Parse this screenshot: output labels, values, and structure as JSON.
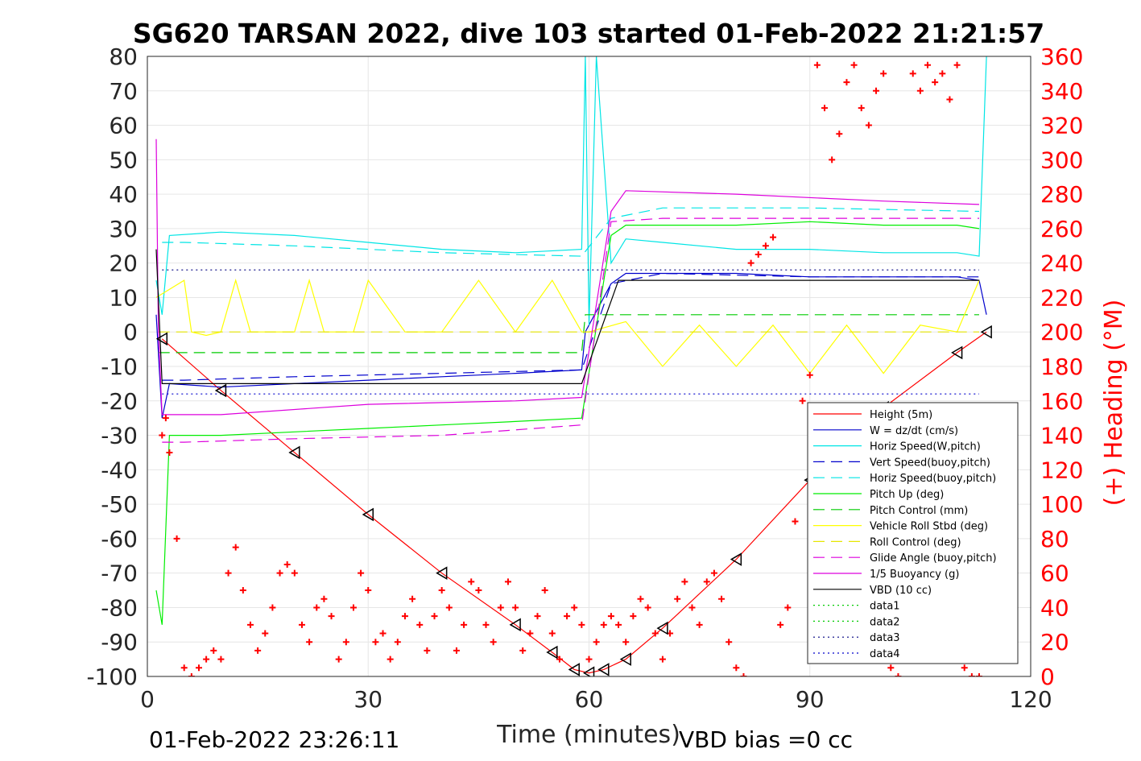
{
  "title": "SG620 TARSAN 2022, dive 103 started 01-Feb-2022 21:21:57",
  "footer_left": "01-Feb-2022 23:26:11",
  "footer_right": "VBD bias =0 cc",
  "colors": {
    "accent_right": "#ff0000"
  },
  "chart_data": {
    "type": "line",
    "xlabel": "Time (minutes)",
    "ylabel": "",
    "ylabel_right": "(+) Heading (°M)",
    "xlim": [
      0,
      120
    ],
    "ylim": [
      -100,
      80
    ],
    "ylim_right": [
      0,
      360
    ],
    "xticks": [
      0,
      30,
      60,
      90,
      120
    ],
    "yticks": [
      80,
      70,
      60,
      50,
      40,
      30,
      20,
      10,
      0,
      -10,
      -20,
      -30,
      -40,
      -50,
      -60,
      -70,
      -80,
      -90,
      -100
    ],
    "yticks_right": [
      360,
      340,
      320,
      300,
      280,
      260,
      240,
      220,
      200,
      180,
      160,
      140,
      120,
      100,
      80,
      60,
      40,
      20,
      0
    ],
    "grid": true,
    "legend_position": "lower-right",
    "series": [
      {
        "name": "Height (5m)",
        "color": "#ff0000",
        "style": "solid",
        "x": [
          2,
          10,
          20,
          30,
          40,
          50,
          55,
          58,
          60,
          62,
          65,
          70,
          80,
          90,
          100,
          110,
          114
        ],
        "y": [
          -2,
          -17,
          -35,
          -53,
          -70,
          -85,
          -93,
          -98,
          -99,
          -98,
          -95,
          -86,
          -66,
          -43,
          -22,
          -6,
          0
        ]
      },
      {
        "name": "W = dz/dt (cm/s)",
        "color": "#0000cc",
        "style": "solid",
        "x": [
          1.2,
          2,
          3,
          10,
          20,
          30,
          40,
          50,
          59,
          59.5,
          63,
          65,
          70,
          80,
          90,
          100,
          110,
          113,
          114
        ],
        "y": [
          5,
          -25,
          -15,
          -16,
          -15,
          -14,
          -13,
          -12,
          -11,
          0,
          14,
          17,
          17,
          17,
          16,
          16,
          16,
          15,
          5
        ]
      },
      {
        "name": "Horiz Speed(W,pitch)",
        "color": "#00e5e5",
        "style": "solid",
        "x": [
          1.2,
          2,
          3,
          10,
          20,
          30,
          40,
          50,
          59,
          59.5,
          60,
          61,
          63,
          65,
          70,
          80,
          90,
          100,
          110,
          113,
          114
        ],
        "y": [
          15,
          5,
          28,
          29,
          28,
          26,
          24,
          23,
          24,
          80,
          2,
          80,
          20,
          27,
          26,
          24,
          24,
          23,
          23,
          22,
          80
        ]
      },
      {
        "name": "Vert Speed(buoy,pitch)",
        "color": "#0000cc",
        "style": "dashed",
        "x": [
          2,
          5,
          20,
          40,
          59,
          63,
          70,
          90,
          113
        ],
        "y": [
          -14,
          -14,
          -13,
          -12,
          -11,
          14,
          17,
          16,
          16
        ]
      },
      {
        "name": "Horiz Speed(buoy,pitch)",
        "color": "#00e5e5",
        "style": "dashed",
        "x": [
          2,
          5,
          20,
          40,
          59,
          63,
          70,
          90,
          113
        ],
        "y": [
          26,
          26,
          25,
          23,
          22,
          33,
          36,
          36,
          35
        ]
      },
      {
        "name": "Pitch Up (deg)",
        "color": "#00ee00",
        "style": "solid",
        "x": [
          1.2,
          2,
          3,
          10,
          20,
          30,
          40,
          50,
          59,
          63,
          65,
          70,
          80,
          90,
          100,
          110,
          113
        ],
        "y": [
          -75,
          -85,
          -30,
          -30,
          -29,
          -28,
          -27,
          -26,
          -25,
          28,
          31,
          31,
          31,
          32,
          31,
          31,
          30
        ]
      },
      {
        "name": "Pitch Control (mm)",
        "color": "#00cc00",
        "style": "dashed",
        "x": [
          1.5,
          59,
          59.5,
          113
        ],
        "y": [
          -6,
          -6,
          5,
          5
        ]
      },
      {
        "name": "Vehicle Roll Stbd (deg)",
        "color": "#ffff00",
        "style": "solid",
        "x": [
          1.2,
          5,
          6,
          8,
          10,
          12,
          14,
          20,
          22,
          24,
          28,
          30,
          35,
          40,
          45,
          50,
          55,
          59,
          60,
          65,
          70,
          75,
          80,
          85,
          90,
          95,
          100,
          105,
          110,
          113
        ],
        "y": [
          10,
          15,
          0,
          -1,
          0,
          15,
          0,
          0,
          15,
          0,
          0,
          15,
          0,
          0,
          15,
          0,
          15,
          0,
          0,
          3,
          -10,
          2,
          -10,
          2,
          -12,
          2,
          -12,
          2,
          0,
          15
        ]
      },
      {
        "name": "Roll Control (deg)",
        "color": "#e6e600",
        "style": "dashed",
        "x": [
          1.5,
          59,
          59.5,
          113
        ],
        "y": [
          0,
          0,
          0,
          0
        ]
      },
      {
        "name": "Glide Angle (buoy,pitch)",
        "color": "#dd00dd",
        "style": "dashed",
        "x": [
          2,
          5,
          20,
          40,
          59,
          63,
          70,
          90,
          113
        ],
        "y": [
          -32,
          -32,
          -31,
          -30,
          -27,
          32,
          33,
          33,
          33
        ]
      },
      {
        "name": "1/5 Buoyancy (g)",
        "color": "#dd00dd",
        "style": "solid",
        "x": [
          1.2,
          1.5,
          2,
          3,
          10,
          30,
          50,
          59,
          63,
          65,
          80,
          100,
          113
        ],
        "y": [
          56,
          0,
          -24,
          -24,
          -24,
          -21,
          -20,
          -19,
          35,
          41,
          40,
          38,
          37
        ]
      },
      {
        "name": "VBD (10 cc)",
        "color": "#000000",
        "style": "solid",
        "x": [
          1.2,
          2,
          3,
          20,
          40,
          59,
          64,
          90,
          113
        ],
        "y": [
          24,
          -15,
          -15,
          -15,
          -15,
          -15,
          15,
          15,
          15
        ]
      },
      {
        "name": "data1",
        "color": "#00cc00",
        "style": "dotted",
        "x": [],
        "y": []
      },
      {
        "name": "data2",
        "color": "#00cc00",
        "style": "dotted",
        "x": [],
        "y": []
      },
      {
        "name": "data3",
        "color": "#000080",
        "style": "dotted",
        "x": [
          2,
          113
        ],
        "y": [
          18,
          18
        ]
      },
      {
        "name": "data4",
        "color": "#0000cc",
        "style": "dotted",
        "x": [
          2,
          113
        ],
        "y": [
          -18,
          -18
        ]
      }
    ],
    "heading": {
      "axis": "right",
      "marker": "+",
      "color": "#ff0000",
      "x": [
        2,
        2.5,
        3,
        4,
        5,
        6,
        7,
        8,
        9,
        10,
        11,
        12,
        13,
        14,
        15,
        16,
        17,
        18,
        19,
        20,
        21,
        22,
        23,
        24,
        25,
        26,
        27,
        28,
        29,
        30,
        31,
        32,
        33,
        34,
        35,
        36,
        37,
        38,
        39,
        40,
        41,
        42,
        43,
        44,
        45,
        46,
        47,
        48,
        49,
        50,
        51,
        52,
        53,
        54,
        55,
        56,
        57,
        58,
        59,
        60,
        61,
        62,
        63,
        64,
        65,
        66,
        67,
        68,
        69,
        70,
        71,
        72,
        73,
        74,
        75,
        76,
        77,
        78,
        79,
        80,
        81,
        82,
        83,
        84,
        85,
        86,
        87,
        88,
        89,
        90,
        91,
        92,
        93,
        94,
        95,
        96,
        97,
        98,
        99,
        100,
        101,
        102,
        103,
        104,
        105,
        106,
        107,
        108,
        109,
        110,
        111,
        112,
        113
      ],
      "y": [
        140,
        150,
        130,
        80,
        5,
        0,
        5,
        10,
        15,
        10,
        60,
        75,
        50,
        30,
        15,
        25,
        40,
        60,
        65,
        60,
        30,
        20,
        40,
        45,
        35,
        10,
        20,
        40,
        60,
        50,
        20,
        25,
        10,
        20,
        35,
        45,
        30,
        15,
        35,
        50,
        40,
        15,
        30,
        55,
        50,
        30,
        20,
        40,
        55,
        40,
        15,
        25,
        35,
        50,
        25,
        10,
        35,
        40,
        30,
        10,
        20,
        30,
        35,
        30,
        20,
        35,
        45,
        40,
        25,
        10,
        25,
        45,
        55,
        40,
        30,
        55,
        60,
        45,
        20,
        5,
        0,
        240,
        245,
        250,
        255,
        30,
        40,
        90,
        160,
        175,
        355,
        330,
        300,
        315,
        345,
        355,
        330,
        320,
        340,
        350,
        5,
        0,
        10,
        350,
        340,
        355,
        345,
        350,
        335,
        355,
        5,
        0,
        0
      ]
    }
  }
}
